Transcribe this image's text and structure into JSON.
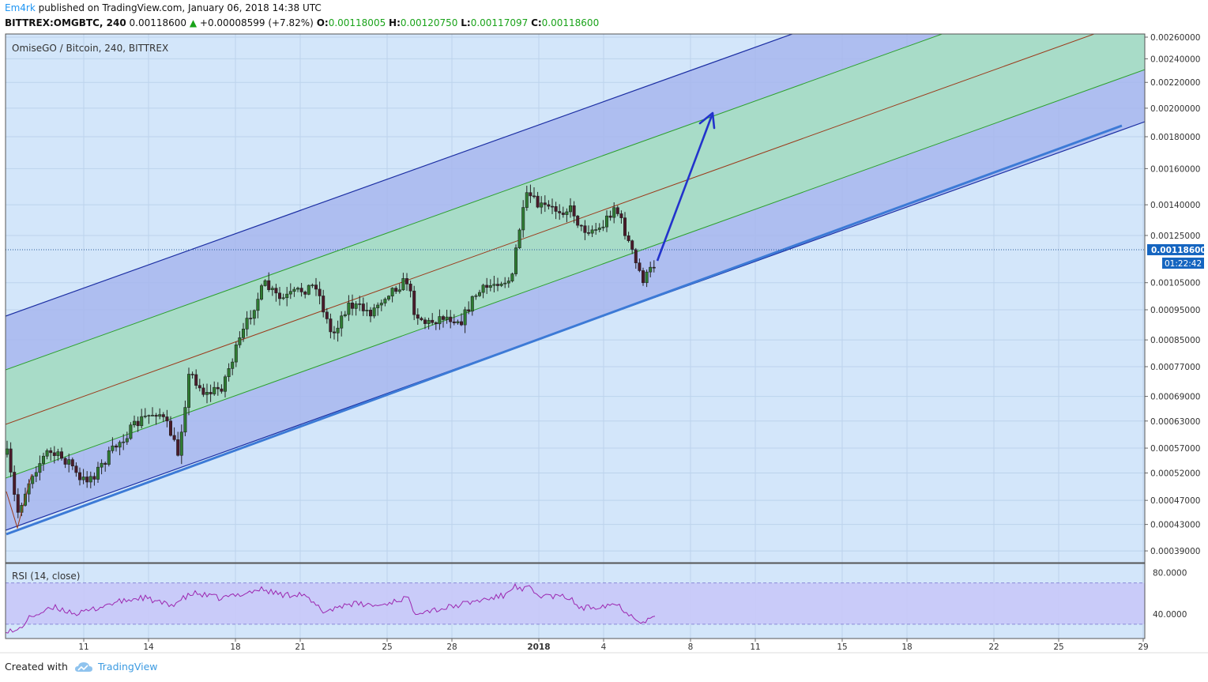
{
  "header": {
    "user": "Em4rk",
    "published": " published on TradingView.com, January 06, 2018 14:38 UTC"
  },
  "quote": {
    "symbol": "BITTREX:OMGBTC, 240",
    "last": "0.00118600",
    "arrow": "▲",
    "change": "+0.00008599 (+7.82%)",
    "o_label": "O:",
    "o": "0.00118005",
    "h_label": "H:",
    "h": "0.00120750",
    "l_label": "L:",
    "l": "0.00117097",
    "c_label": "C:",
    "c": "0.00118600"
  },
  "chart_data": {
    "type": "candlestick",
    "title": "OmiseGO / Bitcoin, 240, BITTREX",
    "y_axis_labels": [
      "0.00260000",
      "0.00240000",
      "0.00220000",
      "0.00200000",
      "0.00180000",
      "0.00160000",
      "0.00140000",
      "0.00125000",
      "0.00105000",
      "0.00095000",
      "0.00085000",
      "0.00077000",
      "0.00069000",
      "0.00063000",
      "0.00057000",
      "0.00052000",
      "0.00047000",
      "0.00043000",
      "0.00039000"
    ],
    "y_axis_scale": "log",
    "ylim": [
      0.00038,
      0.0026
    ],
    "x_tick_labels": [
      "11",
      "14",
      "18",
      "21",
      "25",
      "28",
      "2018",
      "4",
      "8",
      "11",
      "15",
      "18",
      "22",
      "25",
      "29"
    ],
    "last_price_label": "0.00118600",
    "countdown_label": "01:22:42",
    "indicator": {
      "name": "RSI (14, close)",
      "levels_labels": [
        "80.0000",
        "40.0000"
      ],
      "band": [
        30,
        70
      ],
      "ylim": [
        20,
        85
      ]
    },
    "colors": {
      "background": "#d3e6fa",
      "outer_channel": "#a7b6ed",
      "inner_channel": "#a8dcc8",
      "outer_line": "#1c2fa3",
      "inner_line": "#2ca02c",
      "median_line": "#9b3a1a",
      "support_line": "#3c7ad6",
      "projection_arrow": "#2233cc",
      "candle_up": "#2e7d32",
      "candle_down": "#4a1a2a",
      "rsi_line": "#9c27b0",
      "rsi_band": "#c8c8f8"
    }
  },
  "footer": {
    "created": "Created with",
    "brand": "TradingView"
  }
}
